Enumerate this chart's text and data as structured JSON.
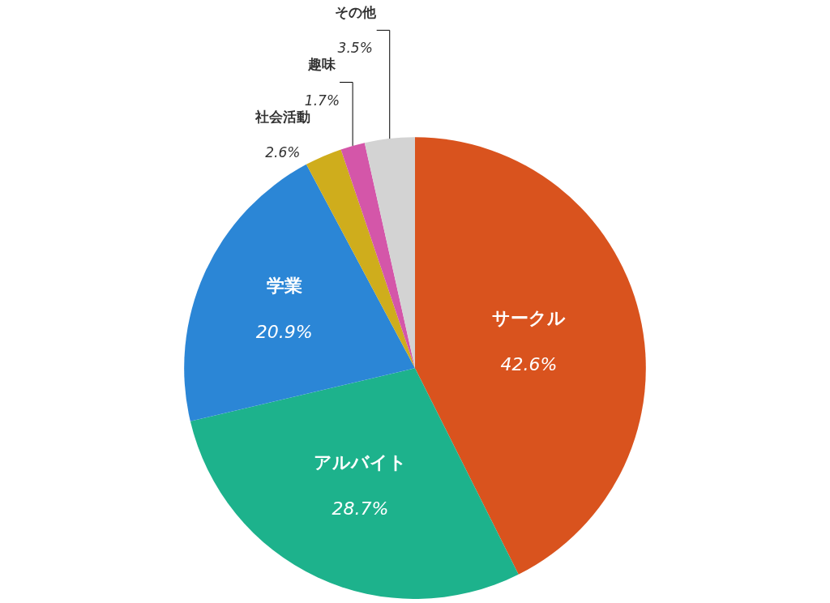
{
  "chart_data": {
    "type": "pie",
    "categories": [
      "サークル",
      "アルバイト",
      "学業",
      "社会活動",
      "趣味",
      "その他"
    ],
    "values": [
      42.6,
      28.7,
      20.9,
      2.6,
      1.7,
      3.5
    ],
    "value_labels": [
      "42.6%",
      "28.7%",
      "20.9%",
      "2.6%",
      "1.7%",
      "3.5%"
    ],
    "colors": [
      "#d9531e",
      "#1db28c",
      "#2b86d6",
      "#cfad1c",
      "#d456a9",
      "#d3d3d3"
    ],
    "legend": false
  }
}
